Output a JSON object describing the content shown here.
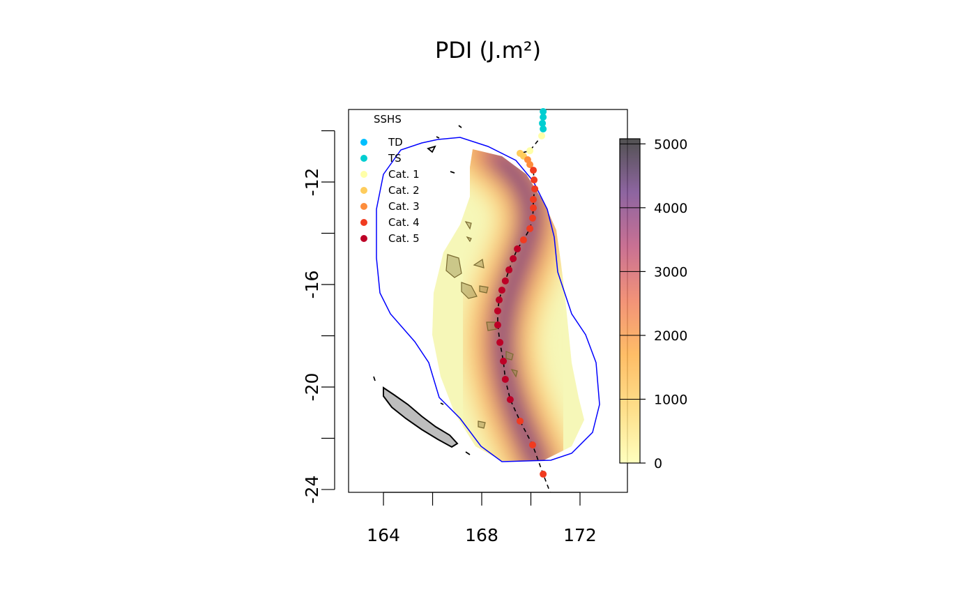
{
  "chart_data": {
    "type": "scatter",
    "title": "PDI (J.m²)",
    "xlim": [
      162.58,
      173.93
    ],
    "ylim": [
      -24.11,
      -9.17
    ],
    "xticks": [
      164,
      {
        "value": 166,
        "label": null
      },
      168,
      {
        "value": 170,
        "label": null
      },
      172
    ],
    "yticks": [
      -24,
      {
        "value": -22,
        "label": null
      },
      -20,
      {
        "value": -18,
        "label": null
      },
      -16,
      {
        "value": -14,
        "label": null
      },
      -12,
      {
        "value": -10,
        "label": null
      }
    ],
    "legend_title": "SSHS",
    "legend": "topleft",
    "track_line": "dashed",
    "series": [
      {
        "name": "TD",
        "color": "#00bfff",
        "x": [],
        "y": []
      },
      {
        "name": "TS",
        "color": "#00ced1",
        "x": [
          170.5,
          170.5,
          170.47,
          170.5
        ],
        "y": [
          -9.25,
          -9.47,
          -9.71,
          -9.93
        ]
      },
      {
        "name": "Cat. 1",
        "color": "#ffffa8",
        "x": [
          170.44,
          169.96
        ],
        "y": [
          -10.2,
          -10.78
        ]
      },
      {
        "name": "Cat. 2",
        "color": "#fecc5c",
        "x": [
          169.56,
          169.7
        ],
        "y": [
          -10.88,
          -10.99
        ]
      },
      {
        "name": "Cat. 3",
        "color": "#fd8d3c",
        "x": [
          169.87,
          169.96
        ],
        "y": [
          -11.13,
          -11.32
        ]
      },
      {
        "name": "Cat. 4",
        "color": "#f03b20",
        "x": [
          170.1,
          170.13,
          170.16,
          170.1,
          170.1,
          170.07,
          169.96,
          169.7,
          169.56,
          170.07,
          170.5
        ],
        "y": [
          -11.54,
          -11.92,
          -12.27,
          -12.68,
          -13.01,
          -13.41,
          -13.82,
          -14.26,
          -21.33,
          -22.26,
          -23.4
        ]
      },
      {
        "name": "Cat. 5",
        "color": "#bd0026",
        "x": [
          169.45,
          169.28,
          169.11,
          168.96,
          168.82,
          168.71,
          168.65,
          168.65,
          168.74,
          168.88,
          168.96,
          169.16
        ],
        "y": [
          -14.61,
          -14.99,
          -15.43,
          -15.86,
          -16.22,
          -16.6,
          -17.03,
          -17.58,
          -18.26,
          -18.99,
          -19.7,
          -20.49
        ]
      }
    ],
    "colorbar": {
      "lim": [
        0,
        5080
      ],
      "ticks": [
        0,
        1000,
        2000,
        3000,
        4000,
        5000
      ],
      "colors": [
        "#ffffb2",
        "#fed976",
        "#feb24c",
        "#f08060",
        "#c05880",
        "#7a4a90",
        "#333333"
      ]
    }
  }
}
